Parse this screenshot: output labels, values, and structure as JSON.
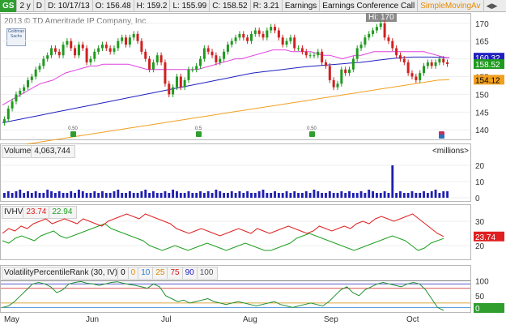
{
  "toolbar": {
    "symbol": "GS",
    "period": "2 y",
    "interval": "D",
    "date": "D: 10/17/13",
    "open": "O: 156.48",
    "high": "H: 159.2",
    "low": "L: 155.99",
    "close": "C: 158.52",
    "range": "R: 3.21",
    "earnings": "Earnings",
    "conference": "Earnings Conference Call",
    "study": "SimpleMovingAv"
  },
  "price_panel": {
    "copyright": "2013 © TD Ameritrade IP Company, Inc.",
    "logo_text": "Goldman Sachs",
    "hi_label": "Hi: 170",
    "last_price": "158.52",
    "sma_value": "160.32",
    "sma_low_value": "154.12",
    "axis_ticks": [
      "170",
      "165",
      "160",
      "155",
      "150",
      "145",
      "140"
    ],
    "dividend_markers": [
      {
        "label": "0.50",
        "icon": "dividend-icon"
      },
      {
        "label": "0.5",
        "icon": "dividend-icon"
      },
      {
        "label": "0.50",
        "icon": "dividend-icon"
      },
      {
        "label": "",
        "icon": "earnings-icon"
      }
    ]
  },
  "volume_panel": {
    "title": "Volume",
    "value": "4,063,744",
    "unit": "<millions>",
    "axis_ticks": [
      "20",
      "10",
      "0"
    ]
  },
  "ivhv_panel": {
    "title": "IVHV",
    "iv_value": "23.74",
    "hv_value": "22.94",
    "axis_ticks": [
      "30",
      "20"
    ],
    "last_iv": "23.74"
  },
  "vpr_panel": {
    "title": "VolatilityPercentileRank (30, IV)",
    "levels": [
      "0",
      "0",
      "10",
      "25",
      "75",
      "90",
      "100"
    ],
    "level_colors": [
      "#000000",
      "#e58a00",
      "#2a7fd0",
      "#d08a00",
      "#d02020",
      "#2020c0",
      "#555555"
    ],
    "axis_ticks": [
      "100",
      "50"
    ],
    "last_value": "0"
  },
  "x_axis": {
    "months": [
      "May",
      "Jun",
      "Jul",
      "Aug",
      "Sep",
      "Oct"
    ]
  },
  "colors": {
    "up_candle": "#1f9a1f",
    "down_candle": "#d02020",
    "sma_fast": "#e040e0",
    "sma_mid": "#2020c0",
    "sma_slow": "#f0a020",
    "iv_line": "#e02020",
    "hv_line": "#20a020",
    "volume_bar": "#1f1fb0"
  },
  "chart_data": {
    "type": "line",
    "price": {
      "ylim": [
        138,
        172
      ],
      "closes": [
        143,
        146,
        148,
        150,
        151,
        152,
        154,
        155,
        157,
        158,
        160,
        161,
        163,
        162,
        161,
        164,
        165,
        163,
        161,
        164,
        163,
        159,
        160,
        162,
        163,
        164,
        163,
        162,
        163,
        165,
        166,
        164,
        166,
        167,
        165,
        162,
        160,
        157,
        159,
        161,
        159,
        153,
        150,
        152,
        155,
        152,
        154,
        157,
        157,
        158,
        160,
        163,
        162,
        161,
        159,
        160,
        162,
        164,
        165,
        166,
        167,
        166,
        165,
        167,
        168,
        167,
        166,
        168,
        169,
        168,
        166,
        164,
        165,
        166,
        163,
        163,
        162,
        161,
        161,
        161,
        162,
        159,
        158,
        154,
        152,
        153,
        157,
        156,
        157,
        160,
        163,
        164,
        166,
        167,
        168,
        169,
        170,
        166,
        165,
        163,
        161,
        160,
        159,
        156,
        155,
        154,
        156,
        158,
        159,
        158,
        159,
        160,
        159,
        158.52
      ],
      "sma_fast": [
        147,
        148,
        149,
        150,
        151,
        152,
        153,
        153.5,
        154,
        155,
        156,
        156.5,
        157,
        157.5,
        158,
        158,
        158.5,
        158.5,
        158.5,
        158.5,
        158.5,
        158,
        157.5,
        157,
        157,
        157,
        157,
        157,
        157,
        157,
        157,
        157,
        157.5,
        158,
        158.5,
        159,
        159.5,
        160,
        160,
        160.5,
        161,
        161.5,
        162,
        162.5,
        162.5,
        162.5,
        162,
        162,
        162,
        162,
        161.5,
        161,
        161,
        160.5,
        160,
        160.5,
        161,
        161,
        161.5,
        162,
        162,
        162,
        162,
        162,
        162,
        162,
        162,
        162,
        161.5,
        161,
        160.5,
        160.32
      ],
      "sma_mid": [
        142,
        142.5,
        143,
        143.5,
        144,
        144.5,
        145,
        145.5,
        146,
        146.5,
        147,
        147.5,
        148,
        148.5,
        149,
        149.5,
        150,
        150.5,
        151,
        151.5,
        152,
        152.5,
        153,
        153.5,
        154,
        154.5,
        155,
        155.5,
        156,
        156.3,
        156.6,
        156.9,
        157.2,
        157.5,
        157.8,
        158,
        158.2,
        158.4,
        158.6,
        158.8,
        159,
        159.3,
        159.6,
        159.9,
        160.2,
        160.4,
        160.5,
        160.5,
        160.5,
        160.4,
        160.32
      ],
      "sma_slow": [
        136,
        136.5,
        137,
        137.5,
        138,
        138.5,
        139,
        139.5,
        140,
        140.5,
        141,
        141.5,
        142,
        142.5,
        143,
        143.5,
        144,
        144.5,
        145,
        145.5,
        146,
        146.5,
        147,
        147.5,
        148,
        148.5,
        149,
        149.5,
        150,
        150.5,
        151,
        151.5,
        152,
        152.5,
        153,
        153.5,
        154,
        154.12
      ]
    },
    "volume": {
      "ylim": [
        0,
        25
      ],
      "values": [
        3,
        4,
        3,
        4,
        5,
        3,
        4,
        3,
        4,
        3,
        3,
        5,
        4,
        3,
        4,
        3,
        3,
        4,
        3,
        5,
        4,
        3,
        3,
        4,
        3,
        4,
        3,
        3,
        4,
        5,
        3,
        3,
        4,
        3,
        3,
        4,
        5,
        3,
        4,
        3,
        3,
        4,
        3,
        5,
        4,
        3,
        3,
        4,
        3,
        3,
        4,
        3,
        4,
        3,
        5,
        4,
        3,
        3,
        4,
        3,
        4,
        3,
        4,
        3,
        3,
        4,
        5,
        3,
        3,
        4,
        3,
        3,
        4,
        3,
        4,
        3,
        3,
        4,
        3,
        5,
        4,
        3,
        3,
        4,
        3,
        3,
        4,
        3,
        4,
        3,
        3,
        4,
        3,
        5,
        4,
        3,
        3,
        4,
        3,
        20,
        3,
        4,
        3,
        3,
        4,
        3,
        3,
        4,
        3,
        4,
        5,
        3,
        4,
        4
      ]
    },
    "ivhv": {
      "ylim": [
        15,
        35
      ],
      "iv": [
        25,
        27,
        26,
        28,
        27,
        29,
        30,
        31,
        29,
        30,
        31,
        30,
        29,
        31,
        30,
        29,
        28,
        30,
        31,
        32,
        33,
        32,
        31,
        33,
        32,
        31,
        30,
        29,
        27,
        26,
        25,
        26,
        27,
        26,
        25,
        24,
        25,
        26,
        27,
        26,
        25,
        27,
        26,
        25,
        26,
        27,
        28,
        27,
        26,
        25,
        26,
        28,
        27,
        26,
        27,
        28,
        27,
        29,
        30,
        29,
        31,
        32,
        31,
        30,
        31,
        32,
        33,
        31,
        29,
        27,
        25,
        23.74
      ],
      "hv": [
        22,
        21,
        23,
        24,
        23,
        22,
        24,
        25,
        26,
        24,
        23,
        24,
        25,
        26,
        27,
        28,
        29,
        27,
        26,
        25,
        24,
        23,
        22,
        20,
        19,
        18,
        19,
        20,
        19,
        18,
        19,
        20,
        21,
        20,
        19,
        18,
        19,
        20,
        21,
        20,
        19,
        18,
        18,
        19,
        20,
        21,
        23,
        24,
        25,
        24,
        23,
        22,
        21,
        20,
        19,
        18,
        19,
        20,
        21,
        22,
        23,
        24,
        23,
        22,
        20,
        18,
        19,
        21,
        22,
        22.94
      ]
    },
    "vpr": {
      "ylim": [
        0,
        110
      ],
      "values": [
        10,
        15,
        30,
        50,
        70,
        90,
        95,
        90,
        80,
        60,
        70,
        90,
        95,
        98,
        92,
        90,
        85,
        90,
        95,
        97,
        92,
        88,
        85,
        80,
        75,
        90,
        80,
        50,
        40,
        30,
        35,
        25,
        30,
        35,
        40,
        30,
        25,
        20,
        25,
        30,
        25,
        20,
        15,
        20,
        25,
        30,
        20,
        15,
        10,
        15,
        20,
        25,
        20,
        15,
        30,
        50,
        70,
        80,
        60,
        50,
        70,
        80,
        90,
        95,
        90,
        85,
        80,
        90,
        95,
        90,
        70,
        40,
        10,
        0
      ]
    }
  }
}
